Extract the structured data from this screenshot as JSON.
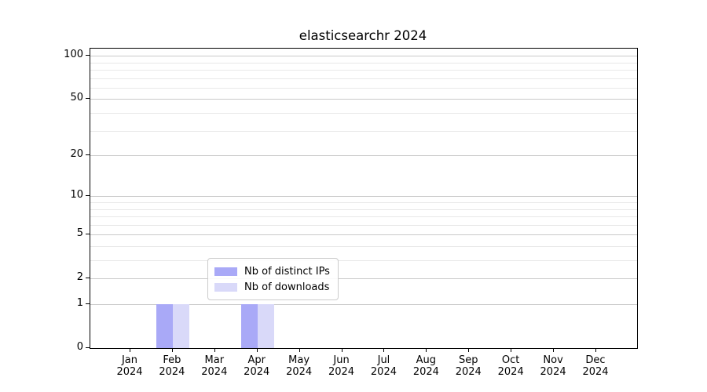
{
  "title": "elasticsearchr 2024",
  "chart_data": {
    "type": "bar",
    "title": "elasticsearchr 2024",
    "categories": [
      "Jan 2024",
      "Feb 2024",
      "Mar 2024",
      "Apr 2024",
      "May 2024",
      "Jun 2024",
      "Jul 2024",
      "Aug 2024",
      "Sep 2024",
      "Oct 2024",
      "Nov 2024",
      "Dec 2024"
    ],
    "series": [
      {
        "name": "Nb of distinct IPs",
        "color": "#a9a9f7",
        "values": [
          0,
          1,
          0,
          1,
          0,
          0,
          0,
          0,
          0,
          0,
          0,
          0
        ]
      },
      {
        "name": "Nb of downloads",
        "color": "#d9d9f9",
        "values": [
          0,
          1,
          0,
          1,
          0,
          0,
          0,
          0,
          0,
          0,
          0,
          0
        ]
      }
    ],
    "xlabel": "",
    "ylabel": "",
    "yscale": "log1p",
    "ylim": [
      0,
      112
    ],
    "yticks": [
      0,
      1,
      2,
      5,
      10,
      20,
      50,
      100
    ],
    "yticks_minor": [
      3,
      4,
      6,
      7,
      8,
      9,
      30,
      40,
      60,
      70,
      80,
      90
    ],
    "grid": "horizontal, major and minor",
    "legend_position": "lower center",
    "colors": {
      "major_grid": "#c9c9c9",
      "minor_grid": "#e8e8e8",
      "spine": "#000000",
      "background": "#ffffff"
    }
  }
}
